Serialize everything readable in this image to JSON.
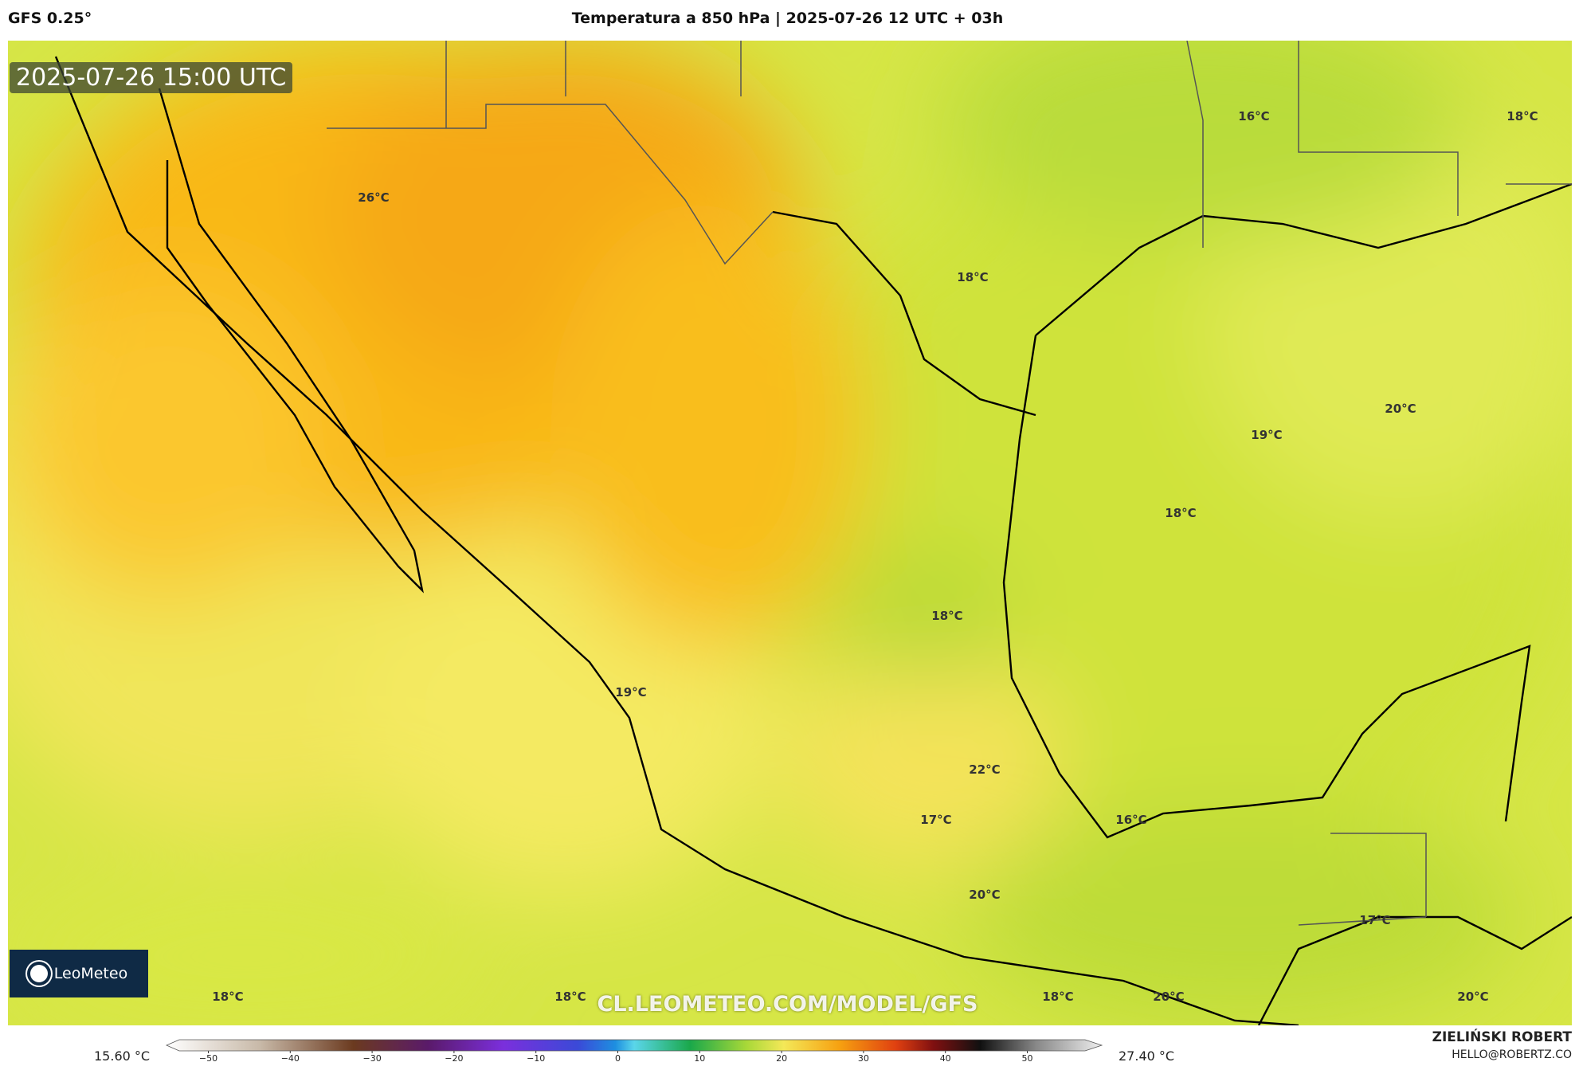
{
  "header": {
    "model": "GFS 0.25°",
    "title": "Temperatura a 850 hPa | 2025-07-26 12 UTC + 03h"
  },
  "map": {
    "timestamp": "2025-07-26 15:00 UTC",
    "logo": "LeoMeteo",
    "watermark": "CL.LEOMETEO.COM/MODEL/GFS",
    "labels": [
      "26°C",
      "16°C",
      "18°C",
      "18°C",
      "20°C",
      "19°C",
      "18°C",
      "18°C",
      "19°C",
      "22°C",
      "17°C",
      "16°C",
      "20°C",
      "17°C",
      "18°C",
      "18°C",
      "18°C",
      "20°C",
      "20°C"
    ]
  },
  "colorbar": {
    "min_label": "15.60 °C",
    "max_label": "27.40 °C",
    "ticks": [
      {
        "value": -50,
        "label": "−50"
      },
      {
        "value": -40,
        "label": "−40"
      },
      {
        "value": -30,
        "label": "−30"
      },
      {
        "value": -20,
        "label": "−20"
      },
      {
        "value": -10,
        "label": "−10"
      },
      0,
      10,
      20,
      30,
      40,
      50
    ]
  },
  "footer": {
    "author": "ZIELIŃSKI ROBERT",
    "email": "HELLO@ROBERTZ.CO"
  }
}
